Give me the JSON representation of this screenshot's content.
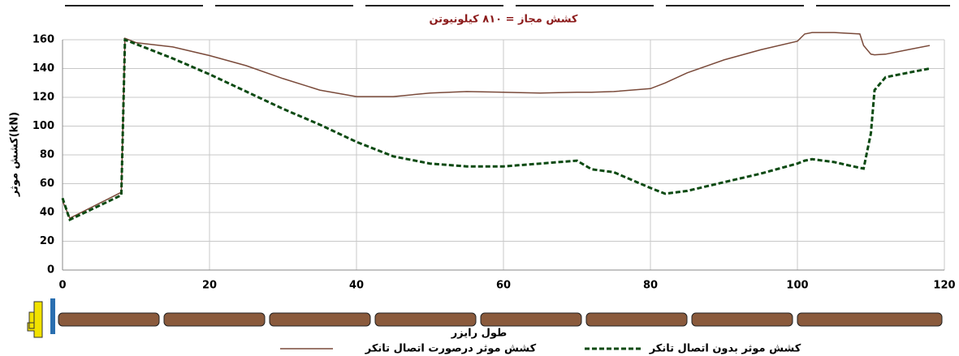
{
  "chart_data": {
    "type": "line",
    "title": "کشش مجاز = ۸۱۰ کیلونیوتن",
    "x_label": "طول رایزر",
    "y_label": "کشش موثر(kN)",
    "x": [
      0,
      1,
      8,
      8.5,
      10,
      15,
      20,
      25,
      30,
      35,
      40,
      45,
      50,
      55,
      60,
      65,
      70,
      72,
      75,
      80,
      82,
      85,
      90,
      95,
      100,
      101,
      102,
      105,
      108.5,
      109,
      110,
      110.5,
      112,
      115,
      118
    ],
    "series": [
      {
        "name": "کشش موثر درصورت اتصال تانکر",
        "color": "#7a4a3a",
        "dash": false,
        "values": [
          48,
          36,
          54,
          161,
          158,
          155,
          149,
          142,
          133,
          125,
          120.5,
          120.5,
          123,
          124,
          123.5,
          123,
          123.5,
          123.5,
          124,
          126,
          130,
          137,
          146,
          153,
          159,
          164,
          165,
          165,
          164,
          156,
          150,
          149.5,
          150,
          153,
          156
        ]
      },
      {
        "name": "کشش موثر بدون اتصال تانکر",
        "color": "#0b4a12",
        "dash": true,
        "values": [
          50,
          35,
          52,
          160,
          157,
          147,
          136,
          124,
          112,
          101,
          89,
          79,
          74,
          72,
          72,
          74,
          76,
          70,
          68,
          57,
          53,
          55,
          61,
          67,
          74,
          76,
          77,
          75,
          71,
          70.5,
          95,
          125,
          134,
          137,
          140
        ]
      }
    ],
    "xlim": [
      0,
      120
    ],
    "xticks": [
      0,
      20,
      40,
      60,
      80,
      100,
      120
    ],
    "ylim": [
      0,
      160
    ],
    "yticks": [
      0,
      20,
      40,
      60,
      80,
      100,
      120,
      140,
      160
    ],
    "grid": true
  }
}
